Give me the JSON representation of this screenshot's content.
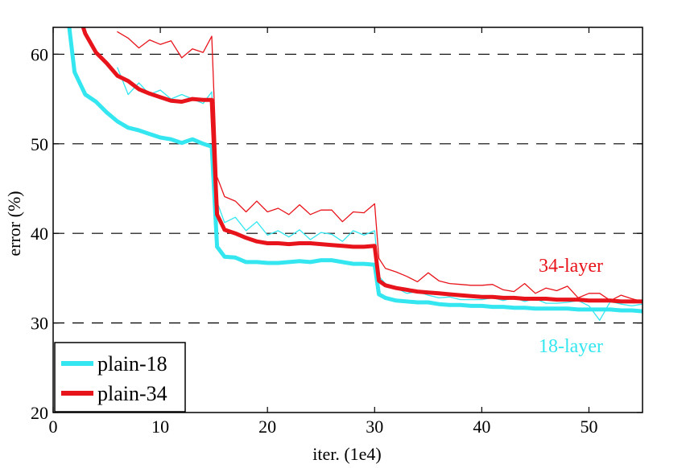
{
  "chart_data": {
    "type": "line",
    "title": "",
    "xlabel": "iter. (1e4)",
    "ylabel": "error (%)",
    "xlim": [
      0,
      55
    ],
    "ylim": [
      20,
      63
    ],
    "x_ticks": [
      0,
      10,
      20,
      30,
      40,
      50
    ],
    "y_ticks": [
      20,
      30,
      40,
      50,
      60
    ],
    "y_grid_dashed": [
      30,
      40,
      50,
      60
    ],
    "legend": {
      "location": "bottom-left",
      "entries": [
        {
          "label": "plain-18",
          "color": "#33e6f0"
        },
        {
          "label": "plain-34",
          "color": "#e8141b"
        }
      ]
    },
    "annotations": [
      {
        "text": "34-layer",
        "color": "#e8141b"
      },
      {
        "text": "18-layer",
        "color": "#33e6f0"
      }
    ],
    "series": [
      {
        "name": "plain-18 (val)",
        "color": "#33e6f0",
        "style": "thick",
        "x": [
          1.5,
          2,
          3,
          4,
          5,
          6,
          7,
          8,
          9,
          10,
          11,
          12,
          13,
          14,
          14.8,
          15.3,
          16,
          17,
          18,
          19,
          20,
          21,
          22,
          23,
          24,
          25,
          26,
          27,
          28,
          29,
          30,
          30.4,
          31,
          32,
          33,
          34,
          35,
          36,
          37,
          38,
          39,
          40,
          41,
          42,
          43,
          44,
          45,
          46,
          47,
          48,
          49,
          50,
          51,
          52,
          53,
          54,
          55
        ],
        "y": [
          63,
          58,
          55.5,
          54.7,
          53.5,
          52.5,
          51.8,
          51.5,
          51.1,
          50.7,
          50.5,
          50.1,
          50.5,
          50,
          49.7,
          38.5,
          37.4,
          37.3,
          36.8,
          36.8,
          36.7,
          36.7,
          36.8,
          36.9,
          36.8,
          37,
          37,
          36.8,
          36.6,
          36.6,
          36.5,
          33.2,
          32.8,
          32.5,
          32.4,
          32.3,
          32.3,
          32.1,
          32,
          32,
          31.9,
          31.9,
          31.8,
          31.8,
          31.7,
          31.7,
          31.6,
          31.6,
          31.6,
          31.6,
          31.5,
          31.5,
          31.5,
          31.5,
          31.4,
          31.4,
          31.3
        ]
      },
      {
        "name": "plain-34 (val)",
        "color": "#e8141b",
        "style": "thick",
        "x": [
          2.8,
          3,
          4,
          5,
          6,
          7,
          8,
          9,
          10,
          11,
          12,
          13,
          14,
          14.8,
          15.3,
          16,
          17,
          18,
          19,
          20,
          21,
          22,
          23,
          24,
          25,
          26,
          27,
          28,
          29,
          30,
          30.4,
          31,
          32,
          33,
          34,
          35,
          36,
          37,
          38,
          39,
          40,
          41,
          42,
          43,
          44,
          45,
          46,
          47,
          48,
          49,
          50,
          51,
          52,
          53,
          54,
          55
        ],
        "y": [
          63,
          62.3,
          60.2,
          59,
          57.6,
          57,
          56.1,
          55.6,
          55.2,
          54.8,
          54.7,
          55,
          54.9,
          54.9,
          42.1,
          40.4,
          40,
          39.5,
          39.1,
          38.9,
          38.9,
          38.8,
          38.9,
          38.9,
          38.8,
          38.7,
          38.6,
          38.5,
          38.5,
          38.6,
          34.7,
          34.2,
          33.9,
          33.7,
          33.5,
          33.4,
          33.3,
          33.2,
          33.1,
          33,
          32.9,
          32.9,
          32.8,
          32.8,
          32.7,
          32.7,
          32.7,
          32.6,
          32.6,
          32.6,
          32.5,
          32.5,
          32.5,
          32.4,
          32.4,
          32.4
        ]
      },
      {
        "name": "plain-18 (train)",
        "color": "#33e6f0",
        "style": "thin",
        "x": [
          6,
          7,
          8,
          9,
          10,
          11,
          12,
          13,
          14,
          14.8,
          15.3,
          16,
          17,
          18,
          19,
          20,
          21,
          22,
          23,
          24,
          25,
          26,
          27,
          28,
          29,
          30,
          30.4,
          31,
          32,
          33,
          34,
          35,
          36,
          37,
          38,
          39,
          40,
          41,
          42,
          43,
          44,
          45,
          46,
          47,
          48,
          49,
          50,
          51,
          52,
          53,
          54,
          55
        ],
        "y": [
          58.5,
          55.5,
          56.8,
          55.5,
          56,
          55,
          55.5,
          55,
          54.5,
          55.8,
          43.5,
          41.2,
          41.8,
          40.3,
          41.3,
          39.8,
          40.3,
          39.6,
          40.4,
          39.3,
          40.1,
          39.9,
          39.1,
          40.3,
          39.8,
          40.3,
          35.2,
          34.4,
          33.9,
          33.3,
          33.5,
          33.1,
          32.8,
          32.9,
          32.6,
          32.6,
          32.6,
          32.8,
          32.5,
          32.8,
          32.4,
          32.7,
          32.2,
          32.2,
          32.3,
          32.5,
          31.9,
          30.3,
          32.4,
          32.1,
          31.9,
          32.1
        ]
      },
      {
        "name": "plain-34 (train)",
        "color": "#e8141b",
        "style": "thin",
        "x": [
          6,
          7,
          8,
          9,
          10,
          11,
          12,
          13,
          14,
          14.8,
          15.3,
          16,
          17,
          18,
          19,
          20,
          21,
          22,
          23,
          24,
          25,
          26,
          27,
          28,
          29,
          30,
          30.4,
          31,
          32,
          33,
          34,
          35,
          36,
          37,
          38,
          39,
          40,
          41,
          42,
          43,
          44,
          45,
          46,
          47,
          48,
          49,
          50,
          51,
          52,
          53,
          54,
          55
        ],
        "y": [
          62.5,
          61.8,
          60.7,
          61.6,
          61.1,
          61.5,
          59.6,
          60.6,
          60.2,
          62,
          46.3,
          44.1,
          43.6,
          42.4,
          43.6,
          42.4,
          42.8,
          42.1,
          43.2,
          42.1,
          42.6,
          42.6,
          41.3,
          42.4,
          42.3,
          43.3,
          37.2,
          36.1,
          35.7,
          35.2,
          34.6,
          35.6,
          34.7,
          34.4,
          34.3,
          34.2,
          34.2,
          34.3,
          33.7,
          33.5,
          34.4,
          33.3,
          33.9,
          33.6,
          34.1,
          32.8,
          33.3,
          33.3,
          32.5,
          33.1,
          32.7,
          32.4
        ]
      }
    ]
  }
}
